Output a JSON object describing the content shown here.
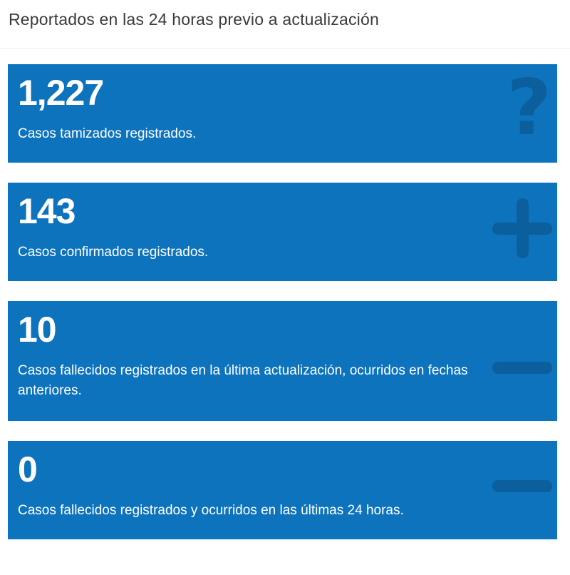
{
  "header": {
    "title": "Reportados en las 24 horas previo a actualización"
  },
  "colors": {
    "accent": "#0d73bd",
    "icon": "#0b5f9c"
  },
  "cards": [
    {
      "value": "1,227",
      "label": "Casos tamizados registrados.",
      "icon": "question-icon"
    },
    {
      "value": "143",
      "label": "Casos confirmados registrados.",
      "icon": "plus-icon"
    },
    {
      "value": "10",
      "label": "Casos fallecidos registrados en la última actualización, ocurridos en fechas anteriores.",
      "icon": "minus-icon"
    },
    {
      "value": "0",
      "label": "Casos fallecidos registrados y ocurridos en las últimas 24 horas.",
      "icon": "minus-icon"
    }
  ]
}
